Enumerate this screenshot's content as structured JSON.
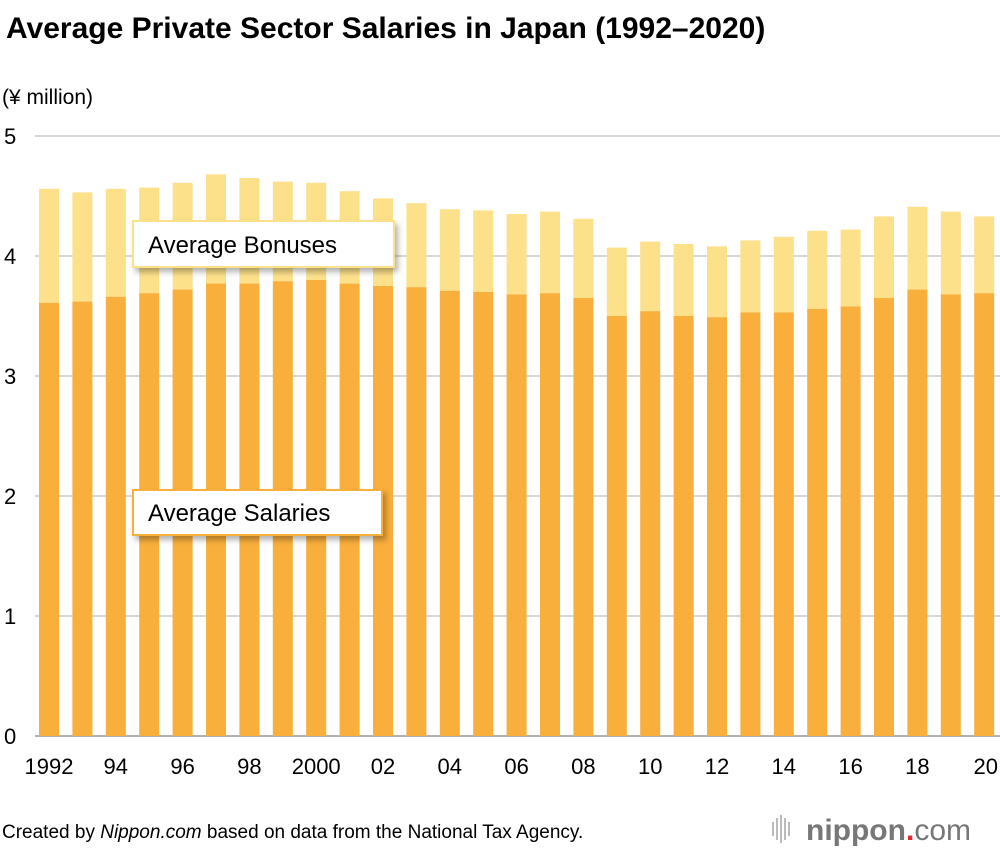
{
  "chart_data": {
    "type": "bar",
    "stacked": true,
    "title": "Average Private Sector Salaries in Japan (1992–2020)",
    "ylabel": "(¥ million)",
    "xlabel": "",
    "ylim": [
      0,
      5
    ],
    "yticks": [
      "0",
      "1",
      "2",
      "3",
      "4",
      "5"
    ],
    "grid": true,
    "categories": [
      1992,
      1993,
      1994,
      1995,
      1996,
      1997,
      1998,
      1999,
      2000,
      2001,
      2002,
      2003,
      2004,
      2005,
      2006,
      2007,
      2008,
      2009,
      2010,
      2011,
      2012,
      2013,
      2014,
      2015,
      2016,
      2017,
      2018,
      2019,
      2020
    ],
    "xtick_labels": [
      "1992",
      "94",
      "96",
      "98",
      "2000",
      "02",
      "04",
      "06",
      "08",
      "10",
      "12",
      "14",
      "16",
      "18",
      "20"
    ],
    "series": [
      {
        "name": "Average Salaries",
        "color": "#F9AF3B",
        "values": [
          3.61,
          3.62,
          3.66,
          3.69,
          3.72,
          3.77,
          3.77,
          3.79,
          3.8,
          3.77,
          3.75,
          3.74,
          3.71,
          3.7,
          3.68,
          3.69,
          3.65,
          3.5,
          3.54,
          3.5,
          3.49,
          3.53,
          3.53,
          3.56,
          3.58,
          3.65,
          3.72,
          3.68,
          3.69
        ]
      },
      {
        "name": "Average Bonuses",
        "color": "#FCE08A",
        "values": [
          0.95,
          0.91,
          0.9,
          0.88,
          0.89,
          0.91,
          0.88,
          0.83,
          0.81,
          0.77,
          0.73,
          0.7,
          0.68,
          0.68,
          0.67,
          0.68,
          0.66,
          0.57,
          0.58,
          0.6,
          0.59,
          0.6,
          0.63,
          0.65,
          0.64,
          0.68,
          0.69,
          0.69,
          0.64
        ]
      }
    ],
    "annotations": [
      "Average Bonuses",
      "Average Salaries"
    ]
  },
  "credit": {
    "prefix": "Created by ",
    "source_italic": "Nippon.com",
    "suffix": " based on data from the National Tax Agency.",
    "logo": "nippon.com"
  }
}
